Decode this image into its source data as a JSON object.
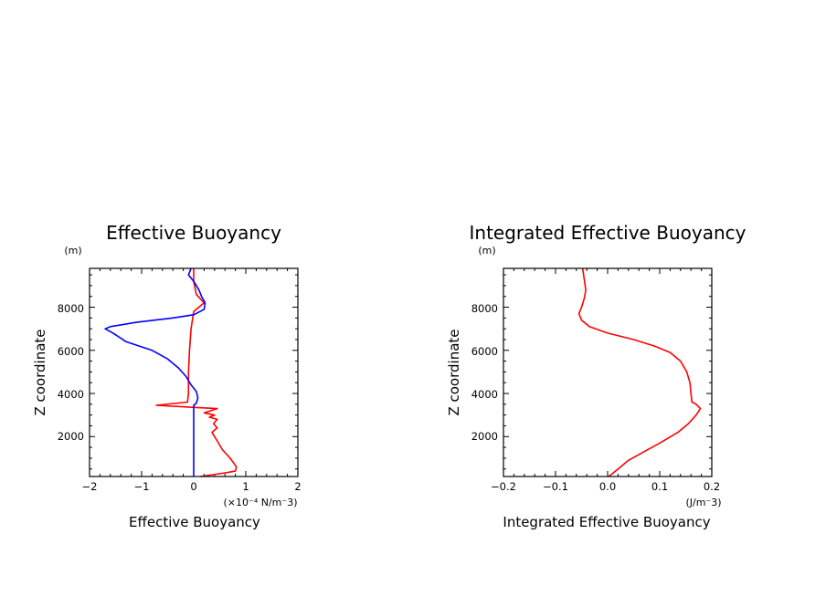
{
  "chart_data": [
    {
      "type": "line",
      "title": "Effective Buoyancy",
      "xlabel": "Effective Buoyancy",
      "ylabel": "Z coordinate",
      "xunit": "(×10⁻⁴ N/m⁻3)",
      "yunit": "(m)",
      "xlim": [
        -2,
        2
      ],
      "ylim": [
        150,
        9800
      ],
      "x_ticks": [
        "−2",
        "−1",
        "0",
        "1",
        "2"
      ],
      "y_ticks": [
        "2000",
        "4000",
        "6000",
        "8000"
      ],
      "series": [
        {
          "color": "#ff0000",
          "points": [
            [
              0.13,
              150
            ],
            [
              0.55,
              300
            ],
            [
              0.8,
              400
            ],
            [
              0.82,
              600
            ],
            [
              0.7,
              1000
            ],
            [
              0.55,
              1400
            ],
            [
              0.45,
              1800
            ],
            [
              0.35,
              2200
            ],
            [
              0.45,
              2400
            ],
            [
              0.38,
              2600
            ],
            [
              0.45,
              2800
            ],
            [
              0.3,
              2900
            ],
            [
              0.4,
              3000
            ],
            [
              0.2,
              3100
            ],
            [
              0.45,
              3300
            ],
            [
              0.05,
              3350
            ],
            [
              -0.72,
              3450
            ],
            [
              -0.12,
              3600
            ],
            [
              -0.1,
              4000
            ],
            [
              -0.1,
              5000
            ],
            [
              -0.08,
              6000
            ],
            [
              -0.05,
              7000
            ],
            [
              0.0,
              7800
            ],
            [
              0.2,
              8200
            ],
            [
              0.05,
              8600
            ],
            [
              0.0,
              9200
            ],
            [
              0.0,
              9800
            ]
          ]
        },
        {
          "color": "#0000ff",
          "points": [
            [
              0.0,
              150
            ],
            [
              0.0,
              3450
            ],
            [
              0.05,
              3550
            ],
            [
              0.08,
              3800
            ],
            [
              0.05,
              4100
            ],
            [
              -0.05,
              4400
            ],
            [
              -0.15,
              4800
            ],
            [
              -0.3,
              5200
            ],
            [
              -0.5,
              5600
            ],
            [
              -0.8,
              6000
            ],
            [
              -1.3,
              6400
            ],
            [
              -1.55,
              6800
            ],
            [
              -1.7,
              7000
            ],
            [
              -1.6,
              7100
            ],
            [
              -1.1,
              7300
            ],
            [
              -0.4,
              7500
            ],
            [
              0.0,
              7650
            ],
            [
              0.2,
              7900
            ],
            [
              0.22,
              8200
            ],
            [
              0.15,
              8500
            ],
            [
              0.1,
              8800
            ],
            [
              0.0,
              9200
            ],
            [
              -0.1,
              9500
            ],
            [
              -0.05,
              9800
            ]
          ]
        }
      ]
    },
    {
      "type": "line",
      "title": "Integrated Effective Buoyancy",
      "xlabel": "Integrated Effective Buoyancy",
      "ylabel": "Z coordinate",
      "xunit": "(J/m⁻3)",
      "yunit": "(m)",
      "xlim": [
        -0.2,
        0.2
      ],
      "ylim": [
        150,
        9800
      ],
      "x_ticks": [
        "−0.2",
        "−0.1",
        "0.0",
        "0.1",
        "0.2"
      ],
      "y_ticks": [
        "2000",
        "4000",
        "6000",
        "8000"
      ],
      "series": [
        {
          "color": "#ff0000",
          "points": [
            [
              0.002,
              150
            ],
            [
              0.01,
              300
            ],
            [
              0.04,
              900
            ],
            [
              0.07,
              1300
            ],
            [
              0.1,
              1700
            ],
            [
              0.135,
              2200
            ],
            [
              0.155,
              2600
            ],
            [
              0.17,
              3000
            ],
            [
              0.178,
              3300
            ],
            [
              0.17,
              3500
            ],
            [
              0.162,
              3600
            ],
            [
              0.16,
              4000
            ],
            [
              0.158,
              4500
            ],
            [
              0.152,
              5000
            ],
            [
              0.14,
              5500
            ],
            [
              0.12,
              5900
            ],
            [
              0.09,
              6200
            ],
            [
              0.05,
              6500
            ],
            [
              0.0,
              6800
            ],
            [
              -0.035,
              7100
            ],
            [
              -0.05,
              7400
            ],
            [
              -0.055,
              7700
            ],
            [
              -0.05,
              8000
            ],
            [
              -0.045,
              8400
            ],
            [
              -0.042,
              8800
            ],
            [
              -0.045,
              9300
            ],
            [
              -0.048,
              9800
            ]
          ]
        }
      ]
    }
  ]
}
